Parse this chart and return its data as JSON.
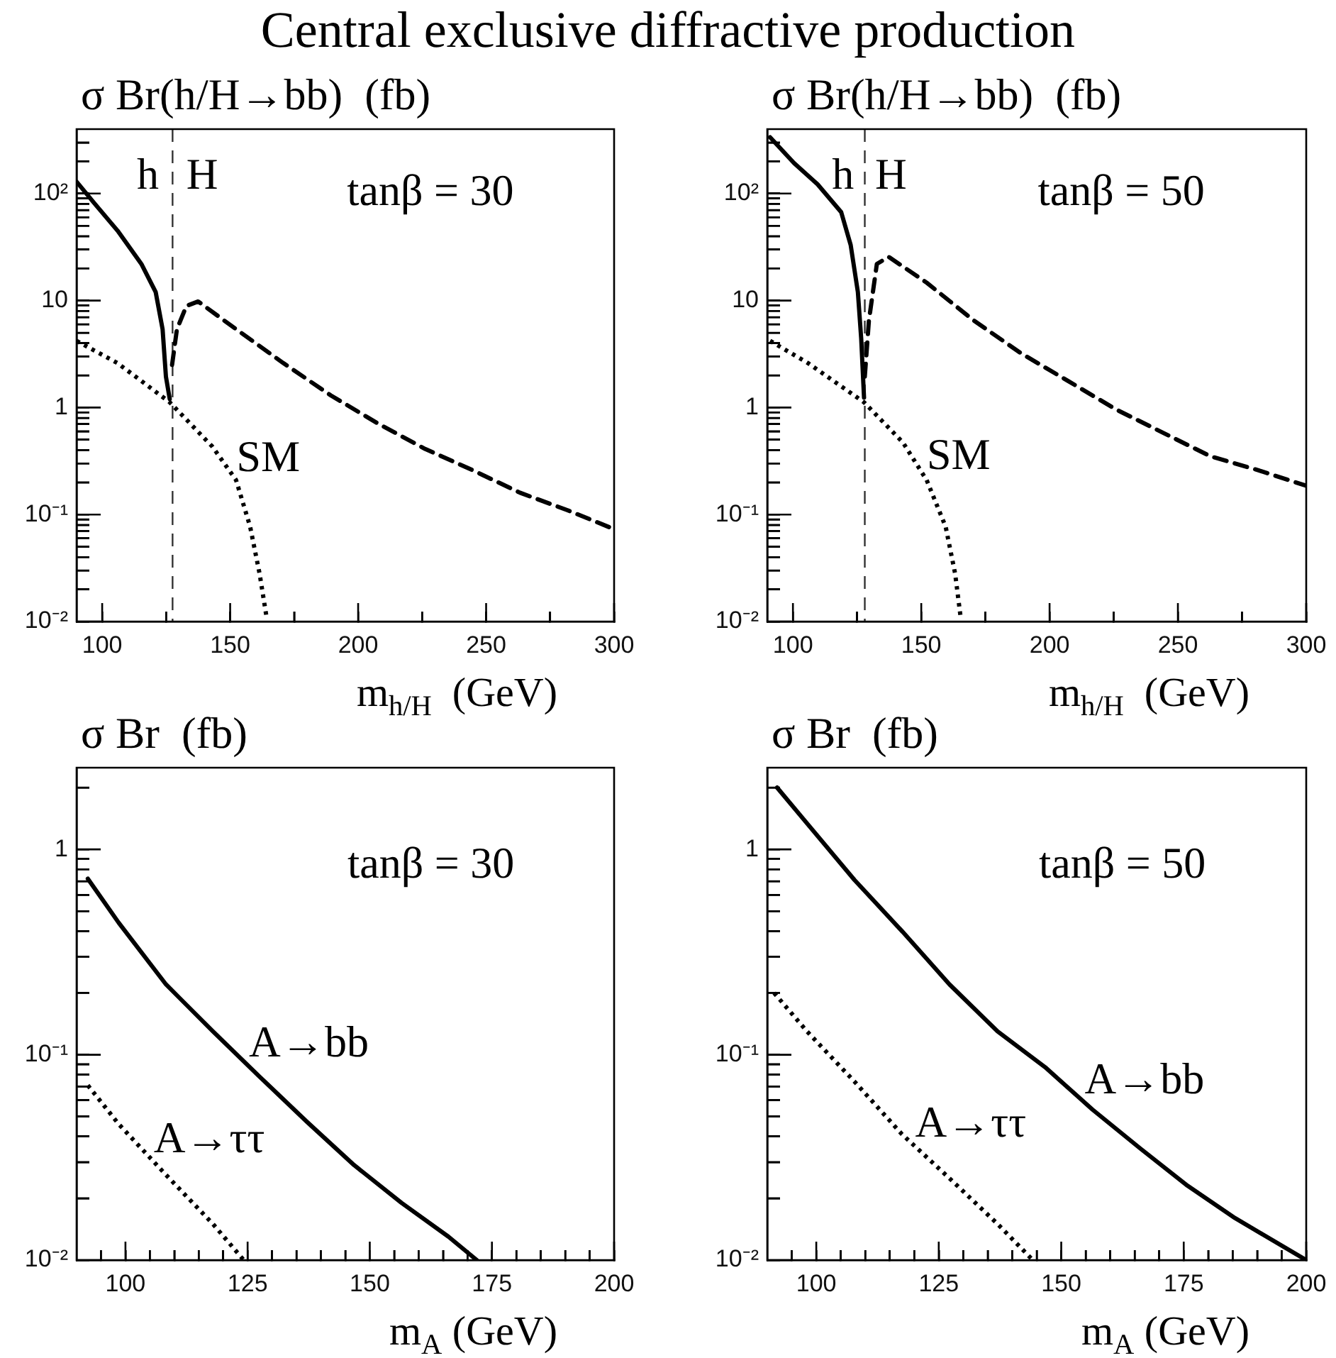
{
  "chart_data": [
    {
      "type": "line",
      "title": "Central exclusive diffractive production",
      "ylabel": "σ Br(h/H→bb)  (fb)",
      "xlabel": "m$_{h/H}$  (GeV)",
      "log": "y",
      "xlim": [
        90,
        300
      ],
      "ylim": [
        0.01,
        400
      ],
      "xticks": [
        100,
        {
          "value": 125,
          "label": null
        },
        150,
        {
          "value": 175,
          "label": null
        },
        200,
        {
          "value": 225,
          "label": null
        },
        250,
        {
          "value": 275,
          "label": null
        },
        300
      ],
      "yticks": [
        {
          "value": 0.01,
          "label": "10⁻²"
        },
        {
          "value": 0.02,
          "label": null
        },
        {
          "value": 0.03,
          "label": null
        },
        {
          "value": 0.04,
          "label": null
        },
        {
          "value": 0.05,
          "label": null
        },
        {
          "value": 0.06,
          "label": null
        },
        {
          "value": 0.07,
          "label": null
        },
        {
          "value": 0.08,
          "label": null
        },
        {
          "value": 0.09,
          "label": null
        },
        {
          "value": 0.1,
          "label": "10⁻¹"
        },
        {
          "value": 0.2,
          "label": null
        },
        {
          "value": 0.3,
          "label": null
        },
        {
          "value": 0.4,
          "label": null
        },
        {
          "value": 0.5,
          "label": null
        },
        {
          "value": 0.6,
          "label": null
        },
        {
          "value": 0.7,
          "label": null
        },
        {
          "value": 0.8,
          "label": null
        },
        {
          "value": 0.9,
          "label": null
        },
        {
          "value": 1,
          "label": "1"
        },
        {
          "value": 2,
          "label": null
        },
        {
          "value": 3,
          "label": null
        },
        {
          "value": 4,
          "label": null
        },
        {
          "value": 5,
          "label": null
        },
        {
          "value": 6,
          "label": null
        },
        {
          "value": 7,
          "label": null
        },
        {
          "value": 8,
          "label": null
        },
        {
          "value": 9,
          "label": null
        },
        {
          "value": 10,
          "label": "10"
        },
        {
          "value": 20,
          "label": null
        },
        {
          "value": 30,
          "label": null
        },
        {
          "value": 40,
          "label": null
        },
        {
          "value": 50,
          "label": null
        },
        {
          "value": 60,
          "label": null
        },
        {
          "value": 70,
          "label": null
        },
        {
          "value": 80,
          "label": null
        },
        {
          "value": 90,
          "label": null
        },
        {
          "value": 100,
          "label": "10²"
        },
        {
          "value": 200,
          "label": null
        },
        {
          "value": 300,
          "label": null
        }
      ],
      "series": [
        {
          "color": "#000000",
          "line_style": "solid",
          "x": [
            90,
            96.8,
            106,
            115.3,
            120.9,
            123.6,
            124.9,
            126.4
          ],
          "values": [
            129,
            82,
            45,
            22,
            12,
            5.4,
            1.95,
            1.2
          ]
        },
        {
          "color": "#000000",
          "line_style": "dashed",
          "x": [
            127.3,
            129.2,
            132.9,
            137.5,
            152.3,
            170.8,
            189.3,
            207.7,
            226.2,
            244.7,
            263.2,
            281.7,
            300
          ],
          "values": [
            2.5,
            5.4,
            8.9,
            9.8,
            5.4,
            2.6,
            1.3,
            0.71,
            0.41,
            0.26,
            0.16,
            0.11,
            0.073
          ]
        },
        {
          "color": "#000000",
          "line_style": "dotted",
          "x": [
            90,
            106,
            126.4,
            143.1,
            152.3,
            157.8,
            161.5,
            164.3
          ],
          "values": [
            4.2,
            2.6,
            1.12,
            0.43,
            0.21,
            0.077,
            0.028,
            0.0107
          ]
        }
      ],
      "ref_lines": [
        {
          "axis": "x",
          "value": 127.5,
          "line_style": "dashed"
        }
      ],
      "annotations": [
        "h",
        "H",
        "tanβ = 30",
        {
          "text": "SM",
          "x": 151.4,
          "y": 0.22
        }
      ]
    },
    {
      "type": "line",
      "ylabel": "σ Br(h/H→bb)  (fb)",
      "xlabel": "m$_{h/H}$  (GeV)",
      "log": "y",
      "xlim": [
        90,
        300
      ],
      "ylim": [
        0.01,
        400
      ],
      "xticks": [
        100,
        {
          "value": 125,
          "label": null
        },
        150,
        {
          "value": 175,
          "label": null
        },
        200,
        {
          "value": 225,
          "label": null
        },
        250,
        {
          "value": 275,
          "label": null
        },
        300
      ],
      "yticks": [
        {
          "value": 0.01,
          "label": "10⁻²"
        },
        {
          "value": 0.02,
          "label": null
        },
        {
          "value": 0.03,
          "label": null
        },
        {
          "value": 0.04,
          "label": null
        },
        {
          "value": 0.05,
          "label": null
        },
        {
          "value": 0.06,
          "label": null
        },
        {
          "value": 0.07,
          "label": null
        },
        {
          "value": 0.08,
          "label": null
        },
        {
          "value": 0.09,
          "label": null
        },
        {
          "value": 0.1,
          "label": "10⁻¹"
        },
        {
          "value": 0.2,
          "label": null
        },
        {
          "value": 0.3,
          "label": null
        },
        {
          "value": 0.4,
          "label": null
        },
        {
          "value": 0.5,
          "label": null
        },
        {
          "value": 0.6,
          "label": null
        },
        {
          "value": 0.7,
          "label": null
        },
        {
          "value": 0.8,
          "label": null
        },
        {
          "value": 0.9,
          "label": null
        },
        {
          "value": 1,
          "label": "1"
        },
        {
          "value": 2,
          "label": null
        },
        {
          "value": 3,
          "label": null
        },
        {
          "value": 4,
          "label": null
        },
        {
          "value": 5,
          "label": null
        },
        {
          "value": 6,
          "label": null
        },
        {
          "value": 7,
          "label": null
        },
        {
          "value": 8,
          "label": null
        },
        {
          "value": 9,
          "label": null
        },
        {
          "value": 10,
          "label": "10"
        },
        {
          "value": 20,
          "label": null
        },
        {
          "value": 30,
          "label": null
        },
        {
          "value": 40,
          "label": null
        },
        {
          "value": 50,
          "label": null
        },
        {
          "value": 60,
          "label": null
        },
        {
          "value": 70,
          "label": null
        },
        {
          "value": 80,
          "label": null
        },
        {
          "value": 90,
          "label": null
        },
        {
          "value": 100,
          "label": "10²"
        },
        {
          "value": 200,
          "label": null
        },
        {
          "value": 300,
          "label": null
        }
      ],
      "series": [
        {
          "color": "#000000",
          "line_style": "solid",
          "x": [
            91.1,
            100.4,
            109.6,
            118.8,
            122.5,
            125.3,
            126.6,
            127.7
          ],
          "values": [
            336,
            193,
            122,
            67,
            33,
            12,
            4.4,
            1.24
          ]
        },
        {
          "color": "#000000",
          "line_style": "dashed",
          "x": [
            128,
            129.6,
            132.7,
            137.3,
            152.1,
            170.5,
            189,
            207.4,
            225.9,
            244.3,
            262.7,
            281.2,
            299.6
          ],
          "values": [
            1.95,
            6.5,
            22,
            25.6,
            14.7,
            6.5,
            3.2,
            1.76,
            0.96,
            0.58,
            0.35,
            0.26,
            0.187
          ]
        },
        {
          "color": "#000000",
          "line_style": "dotted",
          "x": [
            91.1,
            105.9,
            127.7,
            142.9,
            152.1,
            159.5,
            163.2,
            165.4
          ],
          "values": [
            4.2,
            2.6,
            1.12,
            0.47,
            0.21,
            0.077,
            0.028,
            0.0107
          ]
        }
      ],
      "ref_lines": [
        {
          "axis": "x",
          "value": 128,
          "line_style": "dashed"
        }
      ],
      "annotations": [
        "h",
        "H",
        "tanβ = 50",
        {
          "text": "SM",
          "x": 151.1,
          "y": 0.23
        }
      ]
    },
    {
      "type": "line",
      "ylabel": "σ Br  (fb)",
      "xlabel": "m$_{A}$ (GeV)",
      "log": "y",
      "xlim": [
        90,
        200
      ],
      "ylim": [
        0.01,
        2.5
      ],
      "xticks": [
        {
          "value": 95,
          "label": null
        },
        100,
        {
          "value": 105,
          "label": null
        },
        {
          "value": 110,
          "label": null
        },
        {
          "value": 115,
          "label": null
        },
        {
          "value": 120,
          "label": null
        },
        125,
        {
          "value": 130,
          "label": null
        },
        {
          "value": 135,
          "label": null
        },
        {
          "value": 140,
          "label": null
        },
        {
          "value": 145,
          "label": null
        },
        150,
        {
          "value": 155,
          "label": null
        },
        {
          "value": 160,
          "label": null
        },
        {
          "value": 165,
          "label": null
        },
        {
          "value": 170,
          "label": null
        },
        175,
        {
          "value": 180,
          "label": null
        },
        {
          "value": 185,
          "label": null
        },
        {
          "value": 190,
          "label": null
        },
        {
          "value": 195,
          "label": null
        },
        200
      ],
      "yticks": [
        {
          "value": 0.01,
          "label": "10⁻²"
        },
        {
          "value": 0.02,
          "label": null
        },
        {
          "value": 0.03,
          "label": null
        },
        {
          "value": 0.04,
          "label": null
        },
        {
          "value": 0.05,
          "label": null
        },
        {
          "value": 0.06,
          "label": null
        },
        {
          "value": 0.07,
          "label": null
        },
        {
          "value": 0.08,
          "label": null
        },
        {
          "value": 0.09,
          "label": null
        },
        {
          "value": 0.1,
          "label": "10⁻¹"
        },
        {
          "value": 0.2,
          "label": null
        },
        {
          "value": 0.3,
          "label": null
        },
        {
          "value": 0.4,
          "label": null
        },
        {
          "value": 0.5,
          "label": null
        },
        {
          "value": 0.6,
          "label": null
        },
        {
          "value": 0.7,
          "label": null
        },
        {
          "value": 0.8,
          "label": null
        },
        {
          "value": 0.9,
          "label": null
        },
        {
          "value": 1,
          "label": "1"
        },
        {
          "value": 2,
          "label": null
        }
      ],
      "series": [
        {
          "color": "#000000",
          "line_style": "solid",
          "x": [
            92.3,
            98.6,
            108.3,
            117.9,
            127.5,
            137.2,
            146.8,
            156.5,
            166.1,
            171.9
          ],
          "values": [
            0.72,
            0.44,
            0.22,
            0.13,
            0.078,
            0.047,
            0.029,
            0.019,
            0.013,
            0.01
          ]
        },
        {
          "color": "#000000",
          "line_style": "dotted",
          "x": [
            92.3,
            98.6,
            108.3,
            117.9,
            124.2
          ],
          "values": [
            0.071,
            0.046,
            0.026,
            0.015,
            0.01
          ]
        }
      ],
      "annotations": [
        "tanβ = 30",
        {
          "text": "A→bb",
          "x": 124.7,
          "y": 0.091
        },
        {
          "text": "A→ττ",
          "x": 105.2,
          "y": 0.031
        }
      ]
    },
    {
      "type": "line",
      "ylabel": "σ Br  (fb)",
      "xlabel": "m$_{A}$ (GeV)",
      "log": "y",
      "xlim": [
        90,
        200
      ],
      "ylim": [
        0.01,
        2.5
      ],
      "xticks": [
        {
          "value": 95,
          "label": null
        },
        100,
        {
          "value": 105,
          "label": null
        },
        {
          "value": 110,
          "label": null
        },
        {
          "value": 115,
          "label": null
        },
        {
          "value": 120,
          "label": null
        },
        125,
        {
          "value": 130,
          "label": null
        },
        {
          "value": 135,
          "label": null
        },
        {
          "value": 140,
          "label": null
        },
        {
          "value": 145,
          "label": null
        },
        150,
        {
          "value": 155,
          "label": null
        },
        {
          "value": 160,
          "label": null
        },
        {
          "value": 165,
          "label": null
        },
        {
          "value": 170,
          "label": null
        },
        175,
        {
          "value": 180,
          "label": null
        },
        {
          "value": 185,
          "label": null
        },
        {
          "value": 190,
          "label": null
        },
        {
          "value": 195,
          "label": null
        },
        200
      ],
      "yticks": [
        {
          "value": 0.01,
          "label": "10⁻²"
        },
        {
          "value": 0.02,
          "label": null
        },
        {
          "value": 0.03,
          "label": null
        },
        {
          "value": 0.04,
          "label": null
        },
        {
          "value": 0.05,
          "label": null
        },
        {
          "value": 0.06,
          "label": null
        },
        {
          "value": 0.07,
          "label": null
        },
        {
          "value": 0.08,
          "label": null
        },
        {
          "value": 0.09,
          "label": null
        },
        {
          "value": 0.1,
          "label": "10⁻¹"
        },
        {
          "value": 0.2,
          "label": null
        },
        {
          "value": 0.3,
          "label": null
        },
        {
          "value": 0.4,
          "label": null
        },
        {
          "value": 0.5,
          "label": null
        },
        {
          "value": 0.6,
          "label": null
        },
        {
          "value": 0.7,
          "label": null
        },
        {
          "value": 0.8,
          "label": null
        },
        {
          "value": 0.9,
          "label": null
        },
        {
          "value": 1,
          "label": "1"
        },
        {
          "value": 2,
          "label": null
        }
      ],
      "series": [
        {
          "color": "#000000",
          "line_style": "solid",
          "x": [
            92,
            98.1,
            107.8,
            117.5,
            127.2,
            137,
            146.7,
            156.4,
            166.1,
            175.8,
            185.5,
            200
          ],
          "values": [
            2.0,
            1.34,
            0.71,
            0.4,
            0.22,
            0.13,
            0.087,
            0.054,
            0.035,
            0.023,
            0.016,
            0.01
          ]
        },
        {
          "color": "#000000",
          "line_style": "dotted",
          "x": [
            91.4,
            98.1,
            107.8,
            117.5,
            127.2,
            137,
            144.2
          ],
          "values": [
            0.2,
            0.13,
            0.074,
            0.041,
            0.025,
            0.015,
            0.01
          ]
        }
      ],
      "annotations": [
        "tanβ = 50",
        {
          "text": "A→bb",
          "x": 154.2,
          "y": 0.06
        },
        {
          "text": "A→ττ",
          "x": 119.6,
          "y": 0.037
        }
      ]
    }
  ]
}
